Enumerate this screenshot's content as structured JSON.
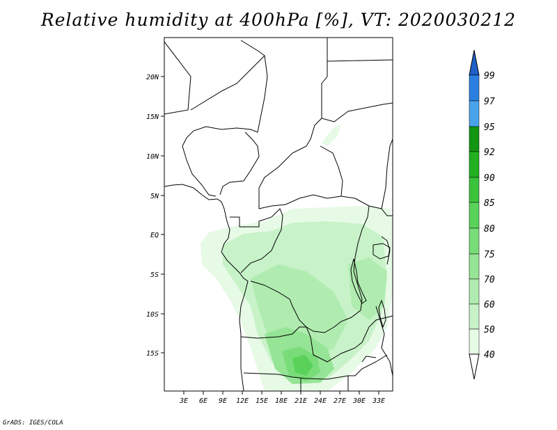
{
  "title": "Relative humidity at 400hPa [%], VT: 2020030212",
  "credit": "GrADS: IGES/COLA",
  "axes": {
    "lat_labels": [
      "20N",
      "15N",
      "10N",
      "5N",
      "EQ",
      "5S",
      "10S",
      "15S"
    ],
    "lon_labels": [
      "3E",
      "6E",
      "9E",
      "12E",
      "15E",
      "18E",
      "21E",
      "24E",
      "27E",
      "30E",
      "33E"
    ]
  },
  "colorbar": {
    "levels": [
      "40",
      "50",
      "60",
      "70",
      "75",
      "80",
      "85",
      "90",
      "92",
      "95",
      "97",
      "99"
    ],
    "colors": [
      "#ffffff",
      "#e6fae6",
      "#c8f2c8",
      "#b0ecb0",
      "#96e496",
      "#78dc78",
      "#5ad25a",
      "#3cc33c",
      "#22b022",
      "#129612",
      "#4aa3ea",
      "#2a7fe0",
      "#1f60c8"
    ]
  }
}
